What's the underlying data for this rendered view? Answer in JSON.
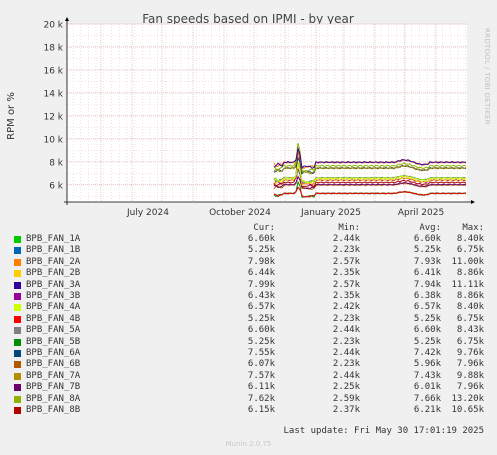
{
  "chart_data": {
    "type": "line",
    "title": "Fan speeds based on IPMI - by year",
    "ylabel": "RPM or %",
    "ylim": [
      4500,
      20000
    ],
    "y_ticks": [
      6000,
      8000,
      10000,
      12000,
      14000,
      16000,
      18000,
      20000
    ],
    "y_tick_labels": [
      "6 k",
      "8 k",
      "10 k",
      "12 k",
      "14 k",
      "16 k",
      "18 k",
      "20 k"
    ],
    "x_tick_labels": [
      "July 2024",
      "October 2024",
      "January 2025",
      "April 2025"
    ],
    "grid": true,
    "data_start": "2025-01-01",
    "series": [
      {
        "name": "BPB_FAN_1A",
        "color": "#00cc00",
        "cur": "6.60k",
        "min": "2.44k",
        "avg": "6.60k",
        "max": "8.40k",
        "level": 6600
      },
      {
        "name": "BPB_FAN_1B",
        "color": "#0066b3",
        "cur": "5.25k",
        "min": "2.23k",
        "avg": "5.25k",
        "max": "6.75k",
        "level": 5250
      },
      {
        "name": "BPB_FAN_2A",
        "color": "#ff8000",
        "cur": "7.98k",
        "min": "2.57k",
        "avg": "7.93k",
        "max": "11.00k",
        "level": 7950
      },
      {
        "name": "BPB_FAN_2B",
        "color": "#ffcc00",
        "cur": "6.44k",
        "min": "2.35k",
        "avg": "6.41k",
        "max": "8.86k",
        "level": 6420
      },
      {
        "name": "BPB_FAN_3A",
        "color": "#330099",
        "cur": "7.99k",
        "min": "2.57k",
        "avg": "7.94k",
        "max": "11.11k",
        "level": 7960
      },
      {
        "name": "BPB_FAN_3B",
        "color": "#990099",
        "cur": "6.43k",
        "min": "2.35k",
        "avg": "6.38k",
        "max": "8.86k",
        "level": 6400
      },
      {
        "name": "BPB_FAN_4A",
        "color": "#ccff00",
        "cur": "6.57k",
        "min": "2.42k",
        "avg": "6.57k",
        "max": "8.40k",
        "level": 6570
      },
      {
        "name": "BPB_FAN_4B",
        "color": "#ff0000",
        "cur": "5.25k",
        "min": "2.23k",
        "avg": "5.25k",
        "max": "6.75k",
        "level": 5250
      },
      {
        "name": "BPB_FAN_5A",
        "color": "#808080",
        "cur": "6.60k",
        "min": "2.44k",
        "avg": "6.60k",
        "max": "8.43k",
        "level": 6600
      },
      {
        "name": "BPB_FAN_5B",
        "color": "#008f00",
        "cur": "5.25k",
        "min": "2.23k",
        "avg": "5.25k",
        "max": "6.75k",
        "level": 5250
      },
      {
        "name": "BPB_FAN_6A",
        "color": "#00487d",
        "cur": "7.55k",
        "min": "2.44k",
        "avg": "7.42k",
        "max": "9.76k",
        "level": 7450
      },
      {
        "name": "BPB_FAN_6B",
        "color": "#b35a00",
        "cur": "6.07k",
        "min": "2.23k",
        "avg": "5.96k",
        "max": "7.96k",
        "level": 5980
      },
      {
        "name": "BPB_FAN_7A",
        "color": "#b38f00",
        "cur": "7.57k",
        "min": "2.44k",
        "avg": "7.43k",
        "max": "9.88k",
        "level": 7450
      },
      {
        "name": "BPB_FAN_7B",
        "color": "#6b006b",
        "cur": "6.11k",
        "min": "2.25k",
        "avg": "6.01k",
        "max": "7.96k",
        "level": 6020
      },
      {
        "name": "BPB_FAN_8A",
        "color": "#8fb300",
        "cur": "7.62k",
        "min": "2.59k",
        "avg": "7.66k",
        "max": "13.20k",
        "level": 7650
      },
      {
        "name": "BPB_FAN_8B",
        "color": "#b30000",
        "cur": "6.15k",
        "min": "2.37k",
        "avg": "6.21k",
        "max": "10.65k",
        "level": 6200
      }
    ]
  },
  "legend_headers": {
    "cur": "Cur:",
    "min": "Min:",
    "avg": "Avg:",
    "max": "Max:"
  },
  "footer": {
    "last_update": "Last update: Fri May 30 17:01:19 2025",
    "version": "Munin 2.0.75",
    "watermark": "RRDTOOL / TOBI OETIKER"
  }
}
